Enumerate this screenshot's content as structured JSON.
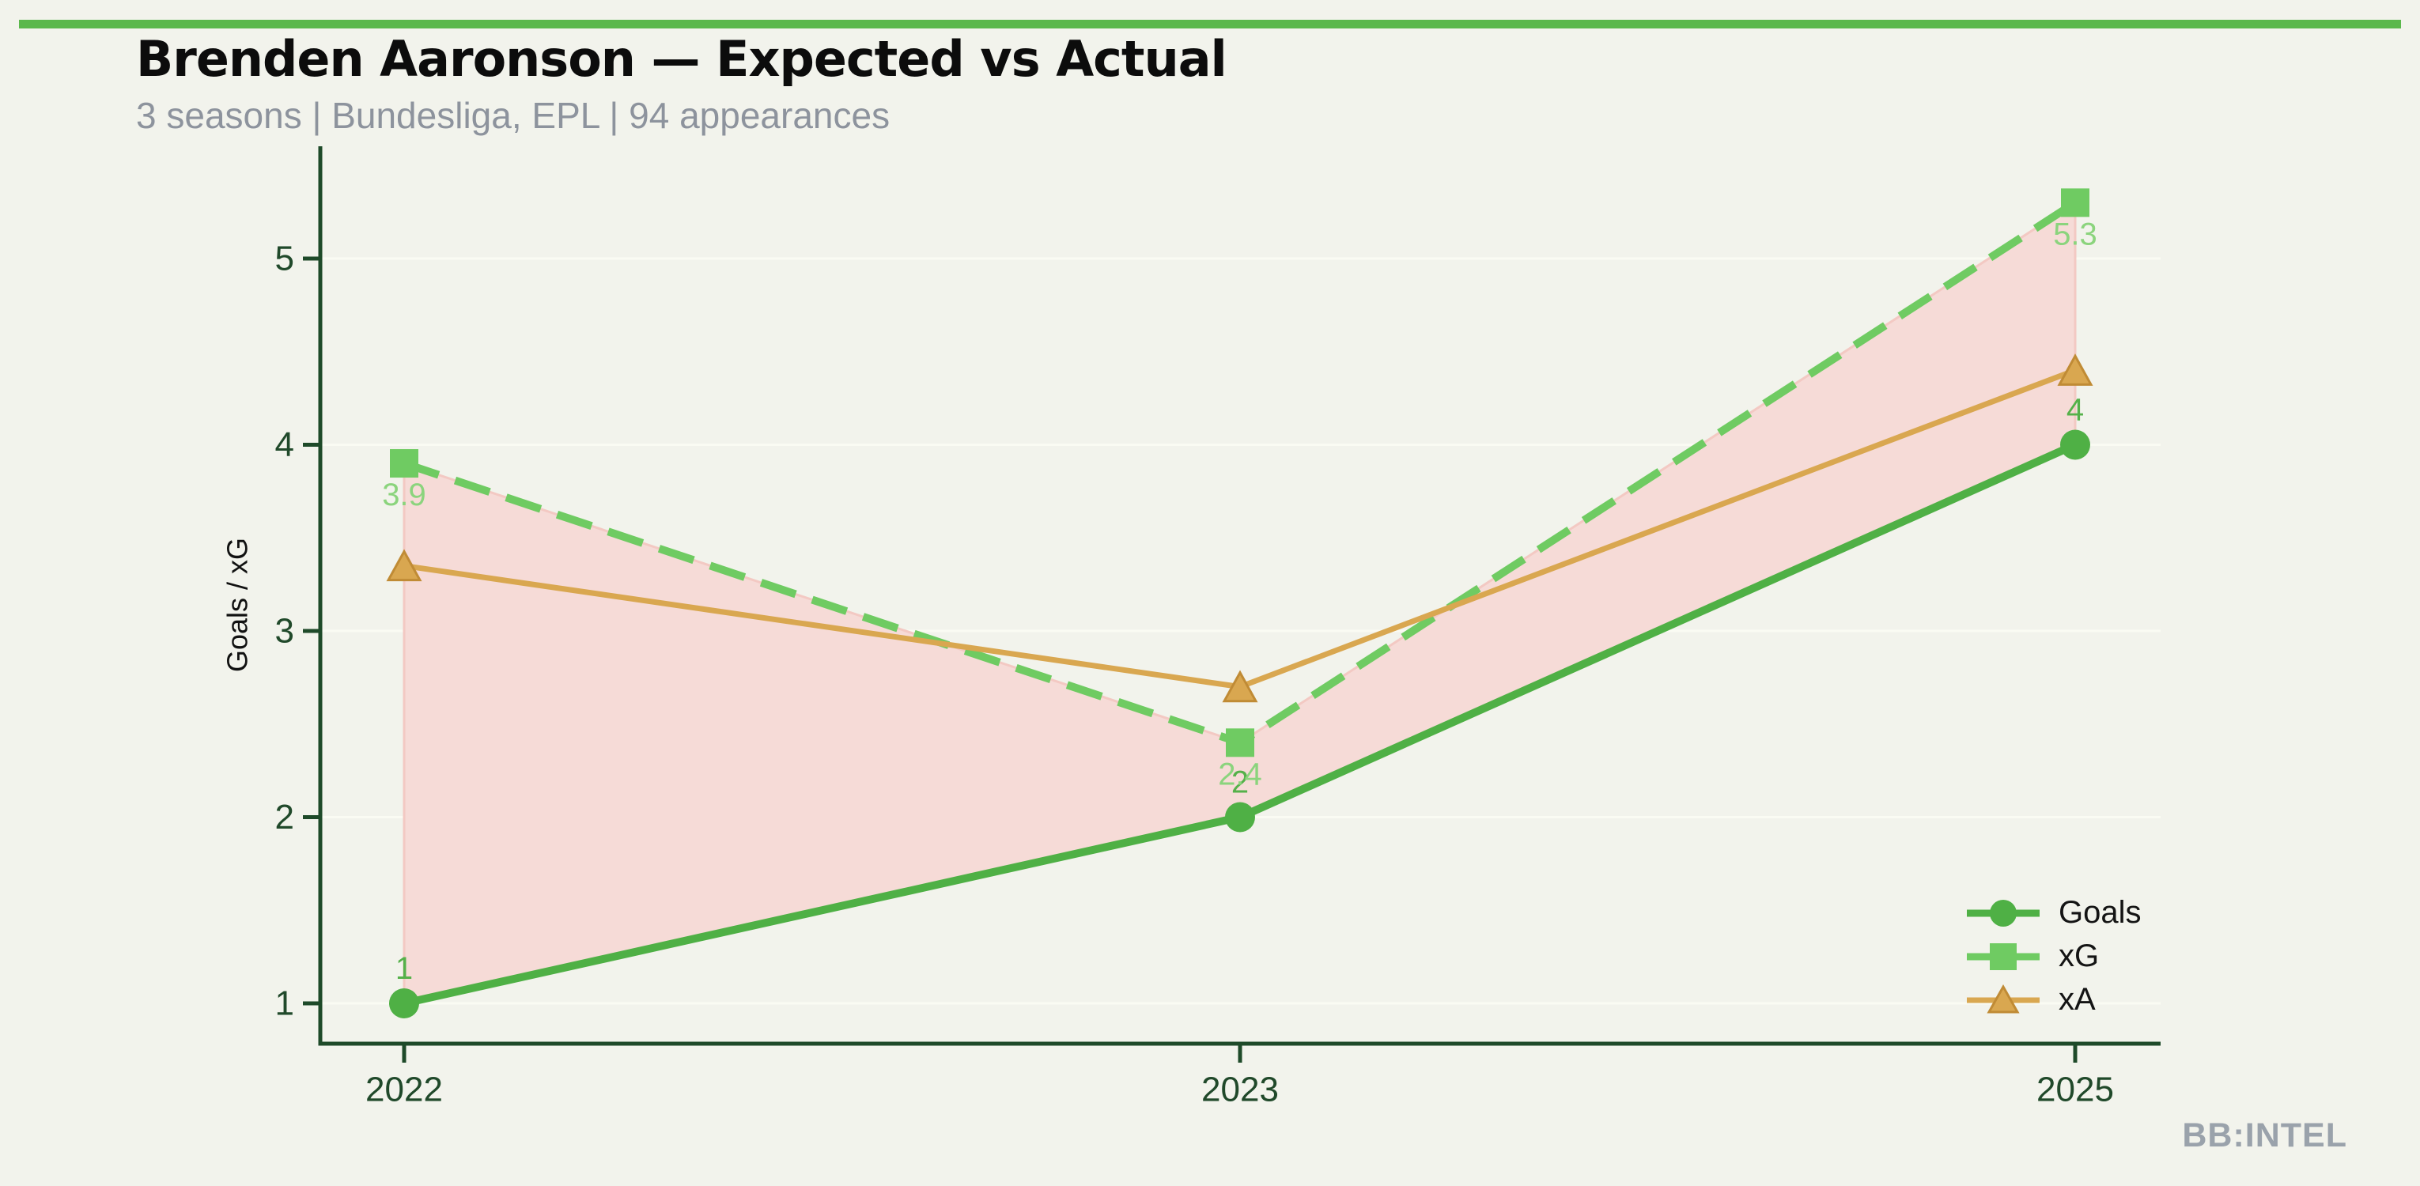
{
  "header": {
    "title": "Brenden Aaronson — Expected vs Actual",
    "subtitle": "3 seasons | Bundesliga, EPL | 94 appearances"
  },
  "watermark": "BB:INTEL",
  "colors": {
    "background": "#f2f3ec",
    "topbar": "#5bb84c",
    "axis": "#1e4a29",
    "tick_label": "#20492a",
    "gridline": "#fafbf3",
    "band_fill": "#f6dbd7",
    "band_edge": "#f3c9c3",
    "subtitle_gray": "#8d939d",
    "watermark_gray": "#9aa2ab",
    "legend_text": "#141414"
  },
  "legend": {
    "items": [
      {
        "label": "Goals"
      },
      {
        "label": "xG"
      },
      {
        "label": "xA"
      }
    ]
  },
  "chart_data": {
    "type": "line",
    "title": "Brenden Aaronson — Expected vs Actual",
    "subtitle": "3 seasons | Bundesliga, EPL | 94 appearances",
    "categories": [
      "2022",
      "2023",
      "2025"
    ],
    "series": [
      {
        "name": "Goals",
        "values": [
          1,
          2,
          4
        ],
        "labels": [
          "1",
          "2",
          "4"
        ],
        "label_position": "above",
        "color": "#4fb045",
        "label_color": "#55b14a",
        "marker": "circle",
        "style": "solid"
      },
      {
        "name": "xG",
        "values": [
          3.9,
          2.4,
          5.3
        ],
        "labels": [
          "3.9",
          "2.4",
          "5.3"
        ],
        "label_position": "below",
        "color": "#6fcb62",
        "label_color": "#8bd47d",
        "marker": "square",
        "style": "dashed"
      },
      {
        "name": "xA",
        "values": [
          3.35,
          2.7,
          4.4
        ],
        "labels": [],
        "label_position": "none",
        "color": "#d9a750",
        "marker_edge": "#c08b35",
        "marker": "triangle",
        "style": "solid"
      }
    ],
    "band": {
      "between": [
        "Goals",
        "xG"
      ],
      "meaning": "xG vs Goals gap"
    },
    "ylabel": "Goals / xG",
    "yticks": [
      1,
      2,
      3,
      4,
      5
    ],
    "ylim": [
      0.78,
      5.6
    ],
    "grid": "horizontal-faint",
    "legend_position": "lower right"
  }
}
